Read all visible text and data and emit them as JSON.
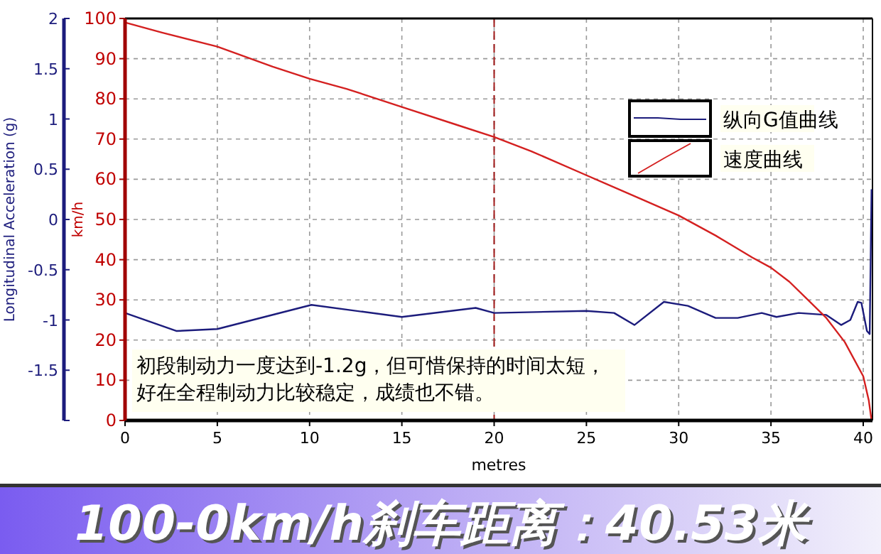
{
  "chart_data": {
    "type": "line",
    "title": "100-0km/h刹车距离：40.53米",
    "xlabel": "metres",
    "ylabel": "km/h",
    "y2label": "Longitudinal Acceleration (g)",
    "annotations": [
      "初段制动力一度达到-1.2g，但可惜保持的时间太短，",
      "好在全程制动力比较稳定，成绩也不错。"
    ],
    "xlim": [
      0,
      40.5
    ],
    "xticks": [
      0,
      5,
      10,
      15,
      20,
      25,
      30,
      35,
      40
    ],
    "ylim": [
      0,
      100
    ],
    "yticks": [
      0,
      10,
      20,
      30,
      40,
      50,
      60,
      70,
      80,
      90,
      100
    ],
    "y2lim": [
      -2,
      2
    ],
    "y2ticks": [
      {
        "value": -2,
        "label": null
      },
      -1.5,
      -1,
      -0.5,
      0,
      0.5,
      1,
      1.5,
      2
    ],
    "grid": true,
    "legend": "top right",
    "line_style": "solid",
    "ref_lines": [
      {
        "axis": "x",
        "value": 20,
        "color": "#a01818",
        "line_style": "dashed"
      }
    ],
    "series": [
      {
        "name": "纵向G值曲线",
        "color": "#1c1c7c",
        "axis": "y2",
        "x": [
          0,
          2.8,
          5,
          10.1,
          15,
          19,
          20,
          25,
          26.5,
          27.6,
          29.2,
          30.5,
          32,
          33.2,
          34.5,
          35.3,
          36.5,
          38,
          38.8,
          39.3,
          39.7,
          39.9,
          40.2,
          40.35,
          40.45
        ],
        "values": [
          -0.93,
          -1.11,
          -1.09,
          -0.85,
          -0.97,
          -0.88,
          -0.93,
          -0.91,
          -0.93,
          -1.05,
          -0.82,
          -0.86,
          -0.98,
          -0.98,
          -0.93,
          -0.97,
          -0.93,
          -0.95,
          -1.05,
          -1.0,
          -0.82,
          -0.83,
          -1.11,
          -1.14,
          0.3
        ]
      },
      {
        "name": "速度曲线",
        "color": "#d42020",
        "x": [
          0,
          2,
          5,
          8,
          10,
          12,
          15,
          18,
          20,
          22,
          25,
          28,
          30,
          32,
          34,
          35,
          36,
          37,
          38,
          39,
          40,
          40.3,
          40.45
        ],
        "values": [
          99,
          96.5,
          93,
          88,
          85,
          82.5,
          78,
          73.5,
          70.5,
          67,
          61,
          55,
          51,
          46,
          40.5,
          38,
          34.5,
          30,
          25.5,
          19.5,
          11,
          5,
          0
        ]
      }
    ]
  }
}
